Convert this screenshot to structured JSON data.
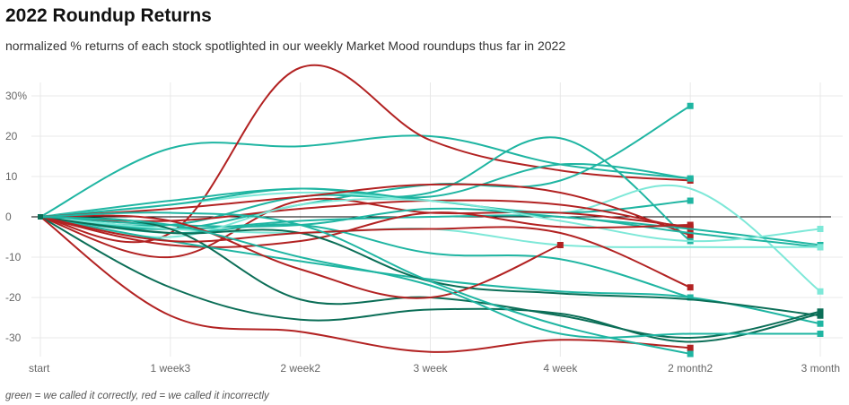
{
  "header": {
    "title": "2022 Roundup Returns",
    "subtitle": "normalized % returns of each stock spotlighted in our weekly Market Mood roundups thus far in 2022"
  },
  "footnote": "green = we called it correctly, red = we called it incorrectly",
  "colors": {
    "green_light": "#7ee8d8",
    "green_mid": "#1fb5a2",
    "green_dark": "#0b6e57",
    "red": "#b22222",
    "zero_line": "#000000",
    "grid": "#e8e8e8"
  },
  "chart_data": {
    "type": "line",
    "title": "2022 Roundup Returns",
    "categories": [
      "start",
      "1 week3",
      "2 week2",
      "3 week",
      "4 week",
      "2 month2",
      "3 month"
    ],
    "y_tick_labels": [
      "30%",
      "20",
      "10",
      "0",
      "-10",
      "-20",
      "-30"
    ],
    "y_ticks": [
      30,
      20,
      10,
      0,
      -10,
      -20,
      -30
    ],
    "ylim": [
      -35,
      33
    ],
    "grid": true,
    "zero_line": true,
    "series": [
      {
        "color": "green_mid",
        "values": [
          0,
          17,
          17.5,
          20,
          13,
          9.5,
          null
        ]
      },
      {
        "color": "red",
        "values": [
          0,
          -4,
          37,
          19,
          11.5,
          9,
          null
        ]
      },
      {
        "color": "green_mid",
        "values": [
          0,
          4,
          7,
          5,
          13,
          9.5,
          null
        ]
      },
      {
        "color": "green_mid",
        "values": [
          0,
          -2,
          5,
          6,
          19.5,
          -6,
          null
        ]
      },
      {
        "color": "green_mid",
        "values": [
          0,
          -3,
          3,
          8,
          9,
          27.5,
          null
        ]
      },
      {
        "color": "green_light",
        "values": [
          0,
          3,
          6,
          4,
          1,
          7,
          -18.5
        ]
      },
      {
        "color": "green_mid",
        "values": [
          0,
          3,
          7,
          4,
          1,
          4,
          null
        ]
      },
      {
        "color": "red",
        "values": [
          0,
          2,
          5,
          8,
          6,
          -4.5,
          null
        ]
      },
      {
        "color": "red",
        "values": [
          0,
          -10,
          4,
          1,
          1,
          -2.5,
          null
        ]
      },
      {
        "color": "red",
        "values": [
          0,
          -1,
          2,
          4,
          3,
          -3,
          null
        ]
      },
      {
        "color": "green_mid",
        "values": [
          0,
          -2,
          -2,
          2,
          0,
          -3,
          -7
        ]
      },
      {
        "color": "green_mid",
        "values": [
          0,
          -3,
          -1,
          0,
          0,
          -4,
          -7.5
        ]
      },
      {
        "color": "green_light",
        "values": [
          0,
          -5,
          3,
          4,
          -1,
          -6,
          -3
        ]
      },
      {
        "color": "green_light",
        "values": [
          0,
          -3,
          -4,
          -3,
          -7,
          -7.5,
          -7.5
        ]
      },
      {
        "color": "red",
        "values": [
          0,
          -7,
          -6,
          1,
          -2.5,
          -2,
          null
        ]
      },
      {
        "color": "green_mid",
        "values": [
          0,
          -4,
          -2,
          -9,
          -10.5,
          -20,
          null
        ]
      },
      {
        "color": "green_mid",
        "values": [
          0,
          -6,
          -11,
          -15.5,
          -18.5,
          -20,
          -26.5
        ]
      },
      {
        "color": "green_dark",
        "values": [
          0,
          -4,
          -4,
          -16,
          -19,
          -20.5,
          -24.5
        ]
      },
      {
        "color": "green_dark",
        "values": [
          0,
          -3,
          -20.5,
          -20,
          -24.5,
          -30,
          -23.5
        ]
      },
      {
        "color": "red",
        "values": [
          0,
          -1,
          -13,
          -20,
          -7,
          null,
          null
        ]
      },
      {
        "color": "red",
        "values": [
          0,
          -6,
          -4,
          -3,
          -4,
          -17.5,
          null
        ]
      },
      {
        "color": "green_dark",
        "values": [
          0,
          -17.5,
          -25.5,
          -23,
          -24,
          -31,
          -24
        ]
      },
      {
        "color": "green_mid",
        "values": [
          0,
          -2,
          -10,
          -17,
          -29,
          -29,
          -29
        ]
      },
      {
        "color": "red",
        "values": [
          0,
          -24.5,
          -28.5,
          -33.5,
          -30.5,
          -32.5,
          null
        ]
      },
      {
        "color": "green_mid",
        "values": [
          0,
          1,
          -2,
          -16,
          -27,
          -34,
          null
        ]
      }
    ]
  }
}
